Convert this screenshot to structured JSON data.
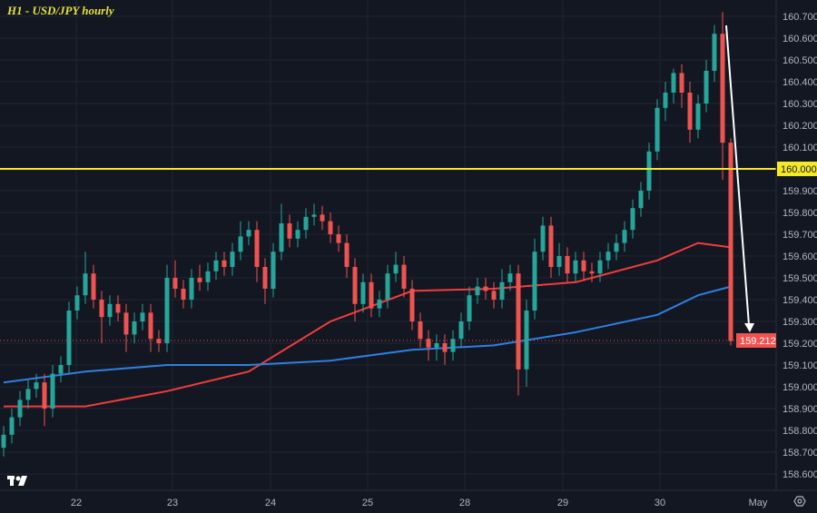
{
  "title": "H1 - USD/JPY hourly",
  "colors": {
    "background": "#131722",
    "up": "#26a69a",
    "down": "#ef5350",
    "ma_red": "#f23c3c",
    "ma_blue": "#2f7fe0",
    "level": "#f5e829",
    "last_price": "#ef5350",
    "arrow": "#ffffff",
    "grid": "#1f2433"
  },
  "chart_data": {
    "type": "candlestick",
    "title": "H1 - USD/JPY hourly",
    "ylim": [
      158.55,
      160.78
    ],
    "y_ticks": [
      "158.600",
      "158.700",
      "158.800",
      "158.900",
      "159.000",
      "159.100",
      "159.200",
      "159.300",
      "159.400",
      "159.500",
      "159.600",
      "159.700",
      "159.800",
      "159.900",
      "160.100",
      "160.200",
      "160.300",
      "160.400",
      "160.500",
      "160.600",
      "160.700"
    ],
    "x_ticks": [
      "22",
      "23",
      "24",
      "25",
      "28",
      "29",
      "30",
      "May"
    ],
    "grid": true,
    "horizontal_level": {
      "value": 160.0,
      "label": "160.000"
    },
    "last_price": {
      "value": 159.212,
      "label": "159.212"
    },
    "candles_ohlc": [
      [
        158.72,
        158.82,
        158.68,
        158.78
      ],
      [
        158.78,
        158.9,
        158.74,
        158.86
      ],
      [
        158.86,
        158.98,
        158.82,
        158.94
      ],
      [
        158.94,
        159.03,
        158.9,
        158.99
      ],
      [
        158.99,
        159.06,
        158.95,
        159.02
      ],
      [
        159.02,
        159.06,
        158.82,
        158.9
      ],
      [
        158.9,
        159.1,
        158.86,
        159.06
      ],
      [
        159.06,
        159.14,
        159.02,
        159.1
      ],
      [
        159.1,
        159.39,
        159.06,
        159.35
      ],
      [
        159.35,
        159.46,
        159.31,
        159.42
      ],
      [
        159.42,
        159.62,
        159.38,
        159.52
      ],
      [
        159.52,
        159.56,
        159.36,
        159.4
      ],
      [
        159.4,
        159.44,
        159.2,
        159.32
      ],
      [
        159.32,
        159.42,
        159.28,
        159.38
      ],
      [
        159.38,
        159.42,
        159.3,
        159.34
      ],
      [
        159.34,
        159.38,
        159.16,
        159.24
      ],
      [
        159.24,
        159.34,
        159.2,
        159.3
      ],
      [
        159.3,
        159.38,
        159.26,
        159.34
      ],
      [
        159.34,
        159.38,
        159.16,
        159.22
      ],
      [
        159.22,
        159.26,
        159.16,
        159.2
      ],
      [
        159.2,
        159.56,
        159.16,
        159.5
      ],
      [
        159.5,
        159.58,
        159.41,
        159.45
      ],
      [
        159.45,
        159.49,
        159.36,
        159.4
      ],
      [
        159.4,
        159.54,
        159.36,
        159.5
      ],
      [
        159.5,
        159.56,
        159.44,
        159.48
      ],
      [
        159.48,
        159.57,
        159.44,
        159.53
      ],
      [
        159.53,
        159.62,
        159.49,
        159.58
      ],
      [
        159.58,
        159.62,
        159.51,
        159.55
      ],
      [
        159.55,
        159.66,
        159.51,
        159.62
      ],
      [
        159.62,
        159.76,
        159.58,
        159.69
      ],
      [
        159.69,
        159.76,
        159.65,
        159.72
      ],
      [
        159.72,
        159.76,
        159.48,
        159.55
      ],
      [
        159.55,
        159.59,
        159.38,
        159.45
      ],
      [
        159.45,
        159.66,
        159.41,
        159.62
      ],
      [
        159.62,
        159.84,
        159.58,
        159.75
      ],
      [
        159.75,
        159.79,
        159.64,
        159.68
      ],
      [
        159.68,
        159.76,
        159.64,
        159.72
      ],
      [
        159.72,
        159.82,
        159.68,
        159.78
      ],
      [
        159.78,
        159.84,
        159.74,
        159.79
      ],
      [
        159.79,
        159.83,
        159.72,
        159.76
      ],
      [
        159.76,
        159.8,
        159.66,
        159.7
      ],
      [
        159.7,
        159.74,
        159.62,
        159.66
      ],
      [
        159.66,
        159.7,
        159.5,
        159.55
      ],
      [
        159.55,
        159.59,
        159.3,
        159.38
      ],
      [
        159.38,
        159.52,
        159.34,
        159.48
      ],
      [
        159.48,
        159.52,
        159.32,
        159.36
      ],
      [
        159.36,
        159.44,
        159.32,
        159.4
      ],
      [
        159.4,
        159.56,
        159.36,
        159.52
      ],
      [
        159.52,
        159.62,
        159.48,
        159.56
      ],
      [
        159.56,
        159.6,
        159.41,
        159.45
      ],
      [
        159.45,
        159.49,
        159.26,
        159.3
      ],
      [
        159.3,
        159.34,
        159.18,
        159.22
      ],
      [
        159.22,
        159.26,
        159.12,
        159.18
      ],
      [
        159.18,
        159.24,
        159.12,
        159.2
      ],
      [
        159.2,
        159.24,
        159.1,
        159.16
      ],
      [
        159.16,
        159.26,
        159.12,
        159.22
      ],
      [
        159.22,
        159.34,
        159.18,
        159.3
      ],
      [
        159.3,
        159.46,
        159.26,
        159.42
      ],
      [
        159.42,
        159.5,
        159.38,
        159.46
      ],
      [
        159.46,
        159.5,
        159.4,
        159.44
      ],
      [
        159.44,
        159.48,
        159.36,
        159.4
      ],
      [
        159.4,
        159.54,
        159.36,
        159.48
      ],
      [
        159.48,
        159.56,
        159.44,
        159.52
      ],
      [
        159.52,
        159.56,
        158.96,
        159.08
      ],
      [
        159.08,
        159.4,
        159.0,
        159.35
      ],
      [
        159.35,
        159.68,
        159.31,
        159.62
      ],
      [
        159.62,
        159.78,
        159.58,
        159.74
      ],
      [
        159.74,
        159.78,
        159.5,
        159.55
      ],
      [
        159.55,
        159.66,
        159.51,
        159.6
      ],
      [
        159.6,
        159.64,
        159.48,
        159.52
      ],
      [
        159.52,
        159.62,
        159.48,
        159.58
      ],
      [
        159.58,
        159.62,
        159.49,
        159.53
      ],
      [
        159.53,
        159.57,
        159.48,
        159.52
      ],
      [
        159.52,
        159.62,
        159.48,
        159.58
      ],
      [
        159.58,
        159.66,
        159.54,
        159.62
      ],
      [
        159.62,
        159.7,
        159.58,
        159.66
      ],
      [
        159.66,
        159.76,
        159.62,
        159.72
      ],
      [
        159.72,
        159.86,
        159.68,
        159.82
      ],
      [
        159.82,
        159.94,
        159.78,
        159.9
      ],
      [
        159.9,
        160.12,
        159.86,
        160.08
      ],
      [
        160.08,
        160.32,
        160.04,
        160.28
      ],
      [
        160.28,
        160.4,
        160.22,
        160.35
      ],
      [
        160.35,
        160.46,
        160.3,
        160.44
      ],
      [
        160.44,
        160.48,
        160.28,
        160.35
      ],
      [
        160.35,
        160.4,
        160.12,
        160.18
      ],
      [
        160.18,
        160.34,
        160.14,
        160.3
      ],
      [
        160.3,
        160.5,
        160.26,
        160.45
      ],
      [
        160.45,
        160.66,
        160.4,
        160.62
      ],
      [
        160.62,
        160.72,
        159.95,
        160.12
      ],
      [
        160.12,
        160.14,
        159.19,
        159.21
      ]
    ],
    "moving_averages": [
      {
        "color": "red",
        "points": [
          [
            0,
            158.91
          ],
          [
            10,
            158.91
          ],
          [
            20,
            158.98
          ],
          [
            30,
            159.07
          ],
          [
            40,
            159.3
          ],
          [
            50,
            159.44
          ],
          [
            60,
            159.45
          ],
          [
            70,
            159.48
          ],
          [
            80,
            159.58
          ],
          [
            85,
            159.66
          ],
          [
            89,
            159.64
          ]
        ]
      },
      {
        "color": "blue",
        "points": [
          [
            0,
            159.02
          ],
          [
            10,
            159.07
          ],
          [
            20,
            159.1
          ],
          [
            30,
            159.1
          ],
          [
            40,
            159.12
          ],
          [
            50,
            159.17
          ],
          [
            60,
            159.19
          ],
          [
            70,
            159.25
          ],
          [
            80,
            159.33
          ],
          [
            85,
            159.42
          ],
          [
            89,
            159.46
          ]
        ]
      }
    ],
    "annotation": {
      "type": "arrow",
      "from_price": 160.65,
      "to_price": 159.26
    }
  }
}
